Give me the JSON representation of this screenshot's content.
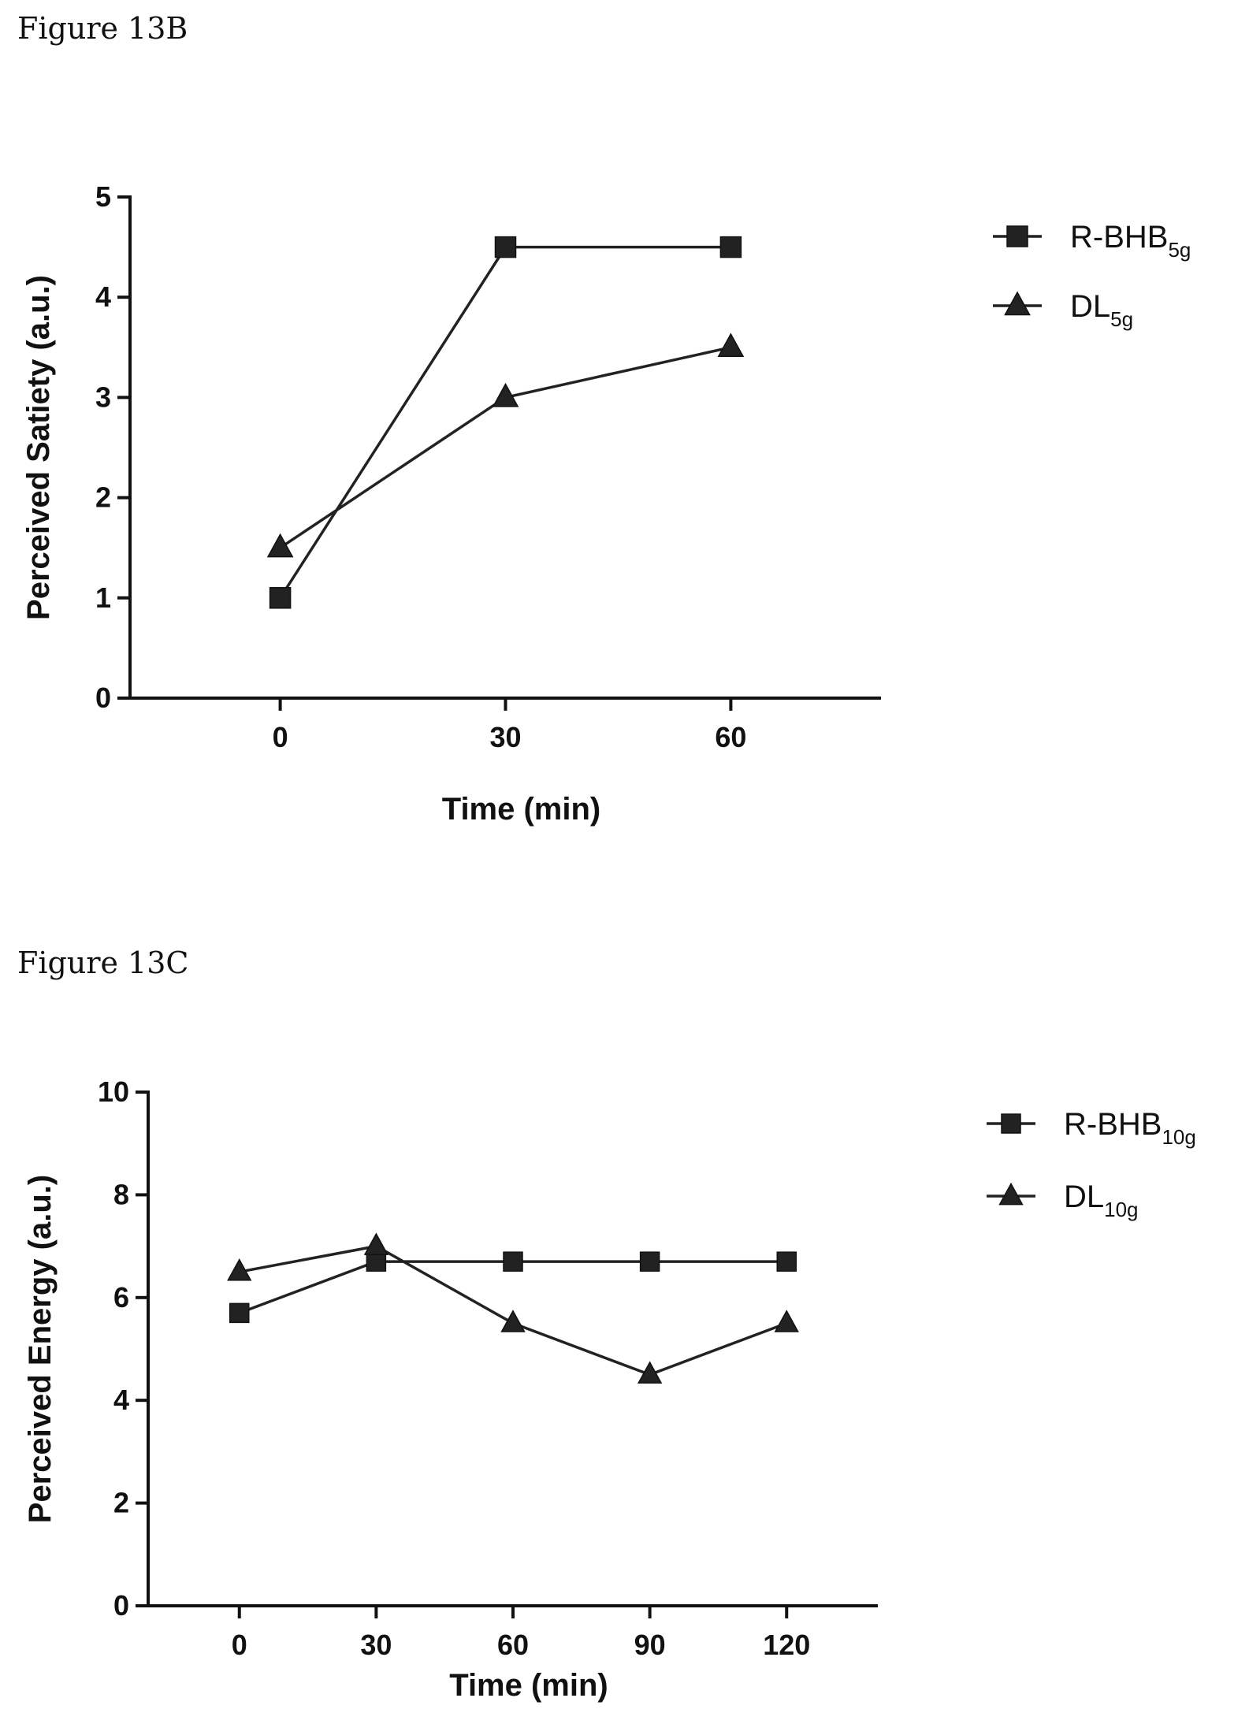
{
  "captions": {
    "b": "Figure 13B",
    "c": "Figure 13C"
  },
  "chart_data": [
    {
      "type": "line",
      "ylabel": "Perceived Satiety (a.u.)",
      "xlabel": "Time (min)",
      "x": [
        0,
        30,
        60
      ],
      "xticks": [
        0,
        30,
        60
      ],
      "yticks": [
        0,
        1,
        2,
        3,
        4,
        5
      ],
      "xlim": [
        -20,
        80
      ],
      "ylim": [
        0,
        5
      ],
      "grid": false,
      "legend_position": "top-right",
      "series": [
        {
          "name": "R-BHB",
          "name_sub": "5g",
          "marker": "square",
          "values": [
            1.0,
            4.5,
            4.5
          ]
        },
        {
          "name": "DL",
          "name_sub": "5g",
          "marker": "triangle",
          "values": [
            1.5,
            3.0,
            3.5
          ]
        }
      ]
    },
    {
      "type": "line",
      "ylabel": "Perceived Energy (a.u.)",
      "xlabel": "Time (min)",
      "x": [
        0,
        30,
        60,
        90,
        120
      ],
      "xticks": [
        0,
        30,
        60,
        90,
        120
      ],
      "yticks": [
        0,
        2,
        4,
        6,
        8,
        10
      ],
      "xlim": [
        -20,
        140
      ],
      "ylim": [
        0,
        10
      ],
      "grid": false,
      "legend_position": "top-right",
      "series": [
        {
          "name": "R-BHB",
          "name_sub": "10g",
          "marker": "square",
          "values": [
            5.7,
            6.7,
            6.7,
            6.7,
            6.7
          ]
        },
        {
          "name": "DL",
          "name_sub": "10g",
          "marker": "triangle",
          "values": [
            6.5,
            7.0,
            5.5,
            4.5,
            5.5
          ]
        }
      ]
    }
  ]
}
